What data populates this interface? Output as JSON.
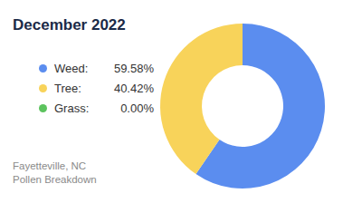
{
  "chart_data": {
    "type": "pie",
    "title": "December 2022",
    "annotations": [
      "Fayetteville, NC",
      "Pollen Breakdown"
    ],
    "categories": [
      "Weed:",
      "Tree:",
      "Grass:"
    ],
    "values": [
      59.58,
      40.42,
      0
    ],
    "value_labels": [
      "59.58%",
      "40.42%",
      "0.00%"
    ],
    "colors": [
      "#5b8def",
      "#f8d35a",
      "#5cc35e"
    ],
    "legend": "left"
  }
}
